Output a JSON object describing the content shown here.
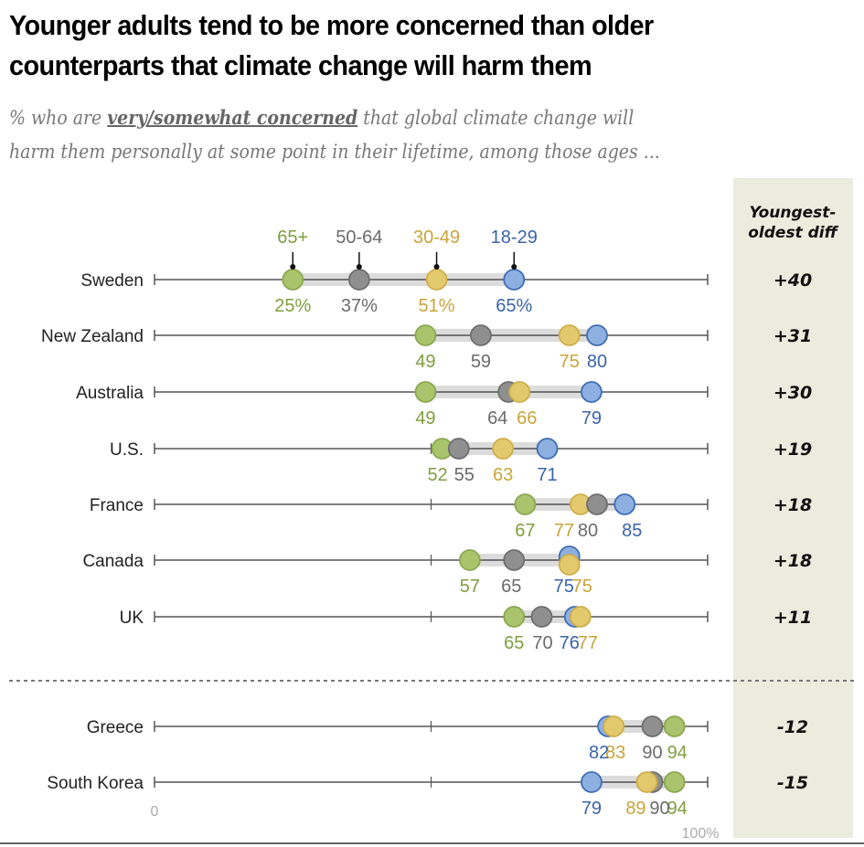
{
  "title_line1": "Younger adults tend to be more concerned than older",
  "title_line2": "counterparts that climate change will harm them",
  "subtitle_pre": "% who are ",
  "subtitle_emph": "very/somewhat concerned",
  "subtitle_post1": " that global climate change will",
  "subtitle_line2": "harm them personally at some point in their lifetime, among those ages ...",
  "chart_data": {
    "type": "dot-plot",
    "title": "Younger adults tend to be more concerned than older counterparts that climate change will harm them",
    "subtitle": "% who are very/somewhat concerned that global climate change will harm them personally at some point in their lifetime, among those ages ...",
    "xlim": [
      0,
      100
    ],
    "x_tick_labels": [
      "0",
      "100%"
    ],
    "diff_header_line1": "Youngest-",
    "diff_header_line2": "oldest diff",
    "series": [
      {
        "name": "65+",
        "color": "#a9c46d",
        "stroke": "#8aa84e",
        "text_color": "#7f9e3f"
      },
      {
        "name": "50-64",
        "color": "#8f8f8f",
        "stroke": "#6e6e6e",
        "text_color": "#6b6b6b"
      },
      {
        "name": "30-49",
        "color": "#e3c96e",
        "stroke": "#cfae48",
        "text_color": "#c9a43a"
      },
      {
        "name": "18-29",
        "color": "#8db0e0",
        "stroke": "#3e6db3",
        "text_color": "#3a64a8"
      }
    ],
    "categories": [
      "Sweden",
      "New Zealand",
      "Australia",
      "U.S.",
      "France",
      "Canada",
      "UK",
      "Greece",
      "South Korea"
    ],
    "rows": [
      {
        "country": "Sweden",
        "values": {
          "65+": 25,
          "50-64": 37,
          "30-49": 51,
          "18-29": 65
        },
        "labels": {
          "65+": "25%",
          "50-64": "37%",
          "30-49": "51%",
          "18-29": "65%"
        },
        "diff": "+40"
      },
      {
        "country": "New Zealand",
        "values": {
          "65+": 49,
          "50-64": 59,
          "30-49": 75,
          "18-29": 80
        },
        "labels": {
          "65+": "49",
          "50-64": "59",
          "30-49": "75",
          "18-29": "80"
        },
        "diff": "+31"
      },
      {
        "country": "Australia",
        "values": {
          "65+": 49,
          "50-64": 64,
          "30-49": 66,
          "18-29": 79
        },
        "labels": {
          "65+": "49",
          "50-64": "64",
          "30-49": "66",
          "18-29": "79"
        },
        "diff": "+30"
      },
      {
        "country": "U.S.",
        "values": {
          "65+": 52,
          "50-64": 55,
          "30-49": 63,
          "18-29": 71
        },
        "labels": {
          "65+": "52",
          "50-64": "55",
          "30-49": "63",
          "18-29": "71"
        },
        "diff": "+19"
      },
      {
        "country": "France",
        "values": {
          "65+": 67,
          "50-64": 80,
          "30-49": 77,
          "18-29": 85
        },
        "labels": {
          "65+": "67",
          "50-64": "80",
          "30-49": "77",
          "18-29": "85"
        },
        "diff": "+18"
      },
      {
        "country": "Canada",
        "values": {
          "65+": 57,
          "50-64": 65,
          "30-49": 75,
          "18-29": 75
        },
        "labels": {
          "65+": "57",
          "50-64": "65",
          "30-49": "75",
          "18-29": "75"
        },
        "diff": "+18"
      },
      {
        "country": "UK",
        "values": {
          "65+": 65,
          "50-64": 70,
          "30-49": 77,
          "18-29": 76
        },
        "labels": {
          "65+": "65",
          "50-64": "70",
          "30-49": "77",
          "18-29": "76"
        },
        "diff": "+11"
      },
      {
        "country": "Greece",
        "values": {
          "65+": 94,
          "50-64": 90,
          "30-49": 83,
          "18-29": 82
        },
        "labels": {
          "65+": "94",
          "50-64": "90",
          "30-49": "83",
          "18-29": "82"
        },
        "diff": "-12"
      },
      {
        "country": "South Korea",
        "values": {
          "65+": 94,
          "50-64": 90,
          "30-49": 89,
          "18-29": 79
        },
        "labels": {
          "65+": "94",
          "50-64": "90",
          "30-49": "89",
          "18-29": "79"
        },
        "diff": "-15"
      }
    ],
    "separator_after": "UK"
  }
}
